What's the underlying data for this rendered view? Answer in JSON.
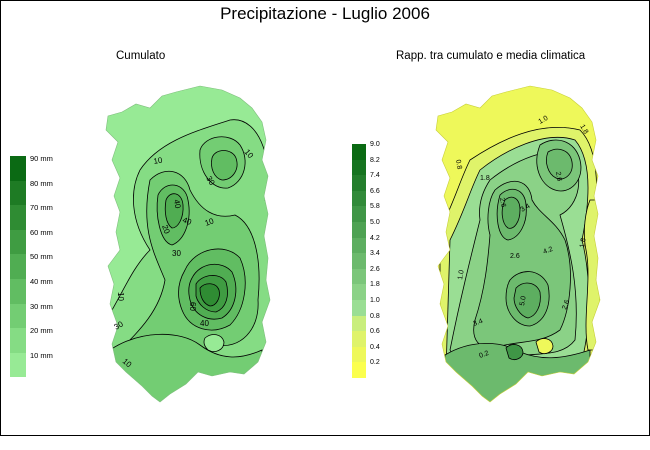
{
  "title": "Precipitazione - Luglio 2006",
  "left_map": {
    "subtitle": "Cumulato",
    "legend_labels": [
      "90 mm",
      "80 mm",
      "70 mm",
      "60 mm",
      "50 mm",
      "40 mm",
      "30 mm",
      "20 mm",
      "10 mm"
    ],
    "legend_colors": [
      "#0b6a14",
      "#1e7b24",
      "#2f8c33",
      "#3f9c42",
      "#50ad52",
      "#61bd62",
      "#73cd73",
      "#85dc84",
      "#97ea95"
    ],
    "contour_labels": [
      "10",
      "10",
      "30",
      "40",
      "20",
      "40",
      "10",
      "30",
      "10",
      "60",
      "40",
      "30",
      "10"
    ]
  },
  "right_map": {
    "subtitle": "Rapp. tra cumulato e media climatica",
    "legend_labels": [
      "9.0",
      "8.2",
      "7.4",
      "6.6",
      "5.8",
      "5.0",
      "4.2",
      "3.4",
      "2.6",
      "1.8",
      "1.0",
      "0.8",
      "0.6",
      "0.4",
      "0.2"
    ],
    "legend_colors": [
      "#0a6a12",
      "#167420",
      "#237e2c",
      "#318a39",
      "#3f9646",
      "#4ea253",
      "#5dae60",
      "#6cba6d",
      "#7bc67a",
      "#8bd287",
      "#9ade94",
      "#c9ee7c",
      "#dff36a",
      "#eef85a",
      "#fbff4e"
    ],
    "contour_labels": [
      "0.8",
      "1.0",
      "2.6",
      "1.8",
      "1.8",
      "2.6",
      "3.4",
      "2.6",
      "4.2",
      "1.8",
      "5.0",
      "2.6",
      "3.4",
      "1.0",
      "0.2"
    ]
  }
}
